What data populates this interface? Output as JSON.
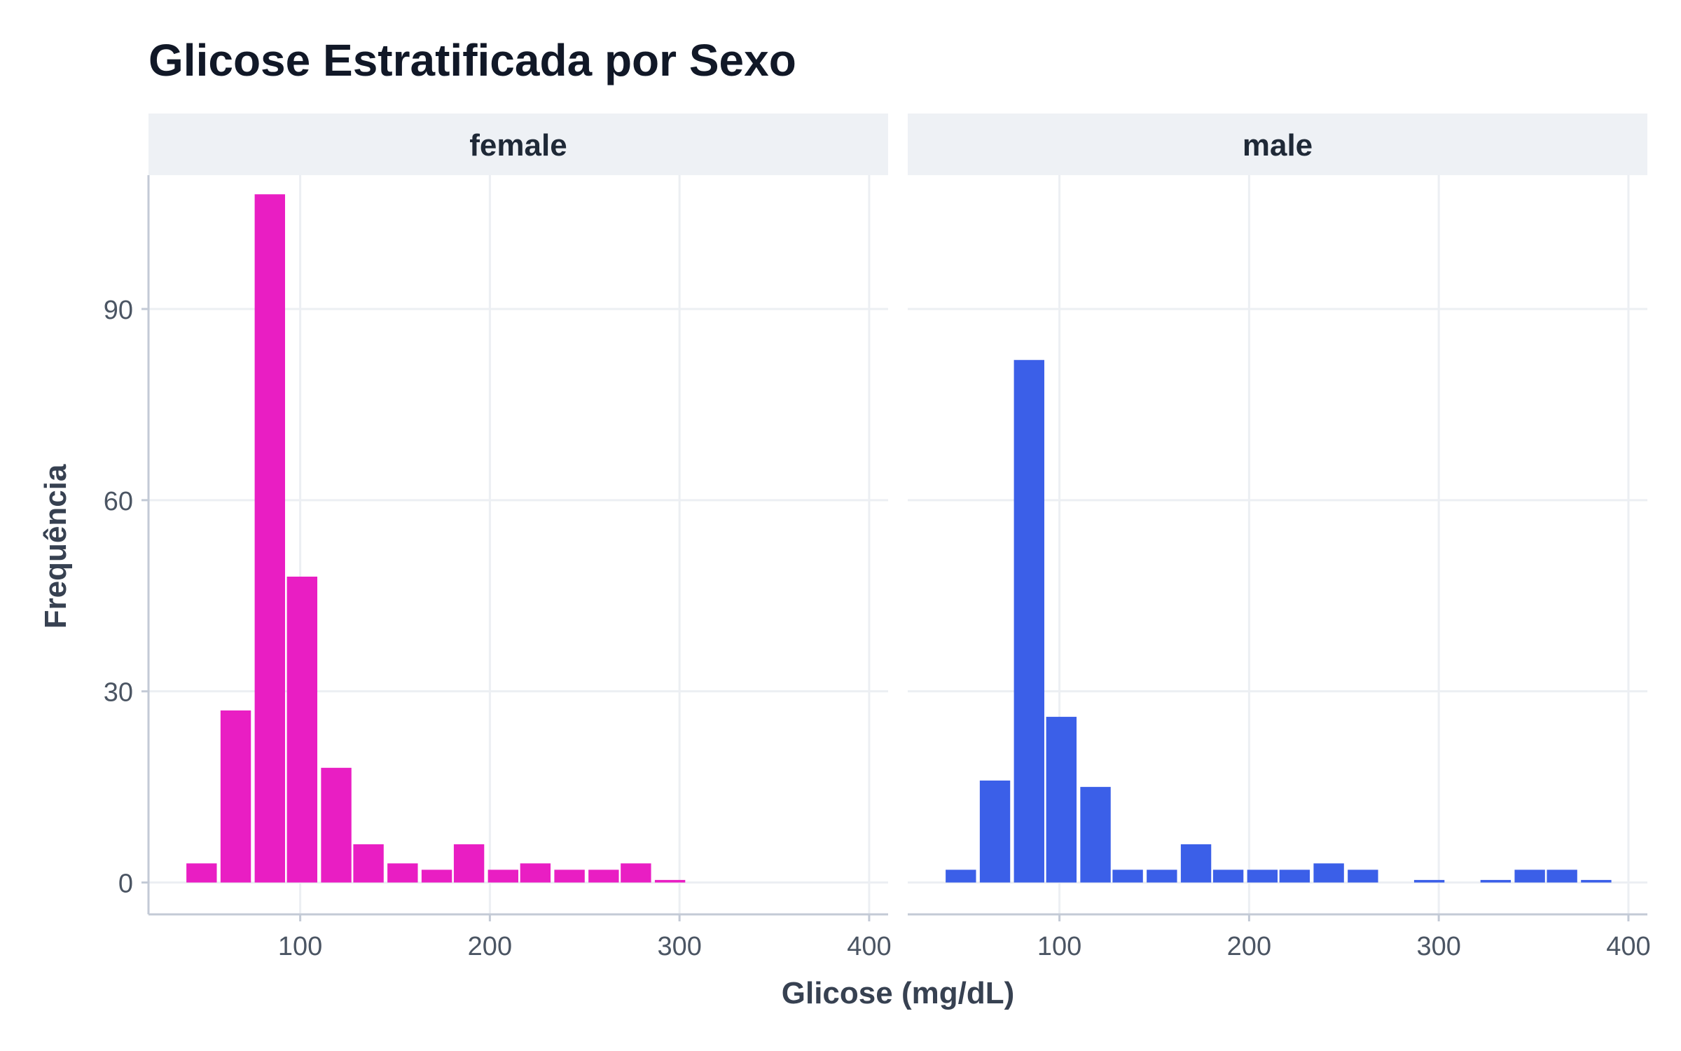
{
  "chart_data": {
    "type": "bar",
    "title": "Glicose Estratificada por Sexo",
    "xlabel": "Glicose (mg/dL)",
    "ylabel": "Frequência",
    "xlim": [
      20,
      410
    ],
    "ylim": [
      -5,
      111
    ],
    "xticks": [
      100,
      200,
      300,
      400
    ],
    "yticks": [
      0,
      30,
      60,
      90
    ],
    "bin_width": 17.5,
    "grid": true,
    "legend": "none",
    "panels": [
      {
        "name": "female",
        "color": "#e91ec3",
        "bins": [
          {
            "x": 48,
            "count": 3
          },
          {
            "x": 66,
            "count": 27
          },
          {
            "x": 84,
            "count": 108
          },
          {
            "x": 101,
            "count": 48
          },
          {
            "x": 119,
            "count": 18
          },
          {
            "x": 136,
            "count": 6
          },
          {
            "x": 154,
            "count": 3
          },
          {
            "x": 172,
            "count": 2
          },
          {
            "x": 189,
            "count": 6
          },
          {
            "x": 207,
            "count": 2
          },
          {
            "x": 224,
            "count": 3
          },
          {
            "x": 242,
            "count": 2
          },
          {
            "x": 260,
            "count": 2
          },
          {
            "x": 277,
            "count": 3
          },
          {
            "x": 295,
            "count": 0.4
          }
        ]
      },
      {
        "name": "male",
        "color": "#3b5fe8",
        "bins": [
          {
            "x": 48,
            "count": 2
          },
          {
            "x": 66,
            "count": 16
          },
          {
            "x": 84,
            "count": 82
          },
          {
            "x": 101,
            "count": 26
          },
          {
            "x": 119,
            "count": 15
          },
          {
            "x": 136,
            "count": 2
          },
          {
            "x": 154,
            "count": 2
          },
          {
            "x": 172,
            "count": 6
          },
          {
            "x": 189,
            "count": 2
          },
          {
            "x": 207,
            "count": 2
          },
          {
            "x": 224,
            "count": 2
          },
          {
            "x": 242,
            "count": 3
          },
          {
            "x": 260,
            "count": 2
          },
          {
            "x": 295,
            "count": 0.4
          },
          {
            "x": 330,
            "count": 0.4
          },
          {
            "x": 348,
            "count": 2
          },
          {
            "x": 365,
            "count": 2
          },
          {
            "x": 383,
            "count": 0.4
          }
        ]
      }
    ]
  },
  "colors": {
    "female": "#e91ec3",
    "male": "#3b5fe8",
    "strip_background": "#eef1f5",
    "grid": "#eceff3",
    "axis_line": "#c3cad6"
  }
}
